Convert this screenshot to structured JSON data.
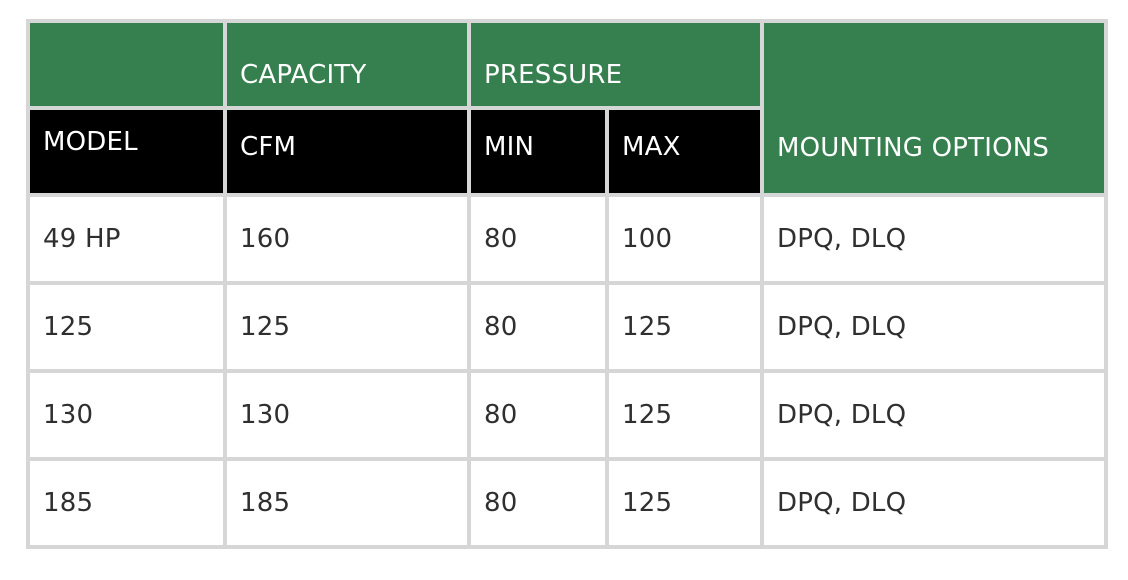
{
  "table": {
    "group_headers": {
      "blank": "",
      "capacity": "CAPACITY",
      "pressure": "PRESSURE",
      "mounting": "MOUNTING OPTIONS"
    },
    "sub_headers": {
      "model": "MODEL",
      "cfm": "CFM",
      "min": "MIN",
      "max": "MAX"
    },
    "rows": [
      {
        "model": "49 HP",
        "cfm": "160",
        "min": "80",
        "max": "100",
        "mounting": "DPQ, DLQ"
      },
      {
        "model": "125",
        "cfm": "125",
        "min": "80",
        "max": "125",
        "mounting": "DPQ, DLQ"
      },
      {
        "model": "130",
        "cfm": "130",
        "min": "80",
        "max": "125",
        "mounting": "DPQ, DLQ"
      },
      {
        "model": "185",
        "cfm": "185",
        "min": "80",
        "max": "125",
        "mounting": "DPQ, DLQ"
      }
    ]
  },
  "colors": {
    "header_green": "#367f4e",
    "header_black": "#000000",
    "border_gray": "#d6d6d6",
    "body_text": "#2f2f2f"
  }
}
